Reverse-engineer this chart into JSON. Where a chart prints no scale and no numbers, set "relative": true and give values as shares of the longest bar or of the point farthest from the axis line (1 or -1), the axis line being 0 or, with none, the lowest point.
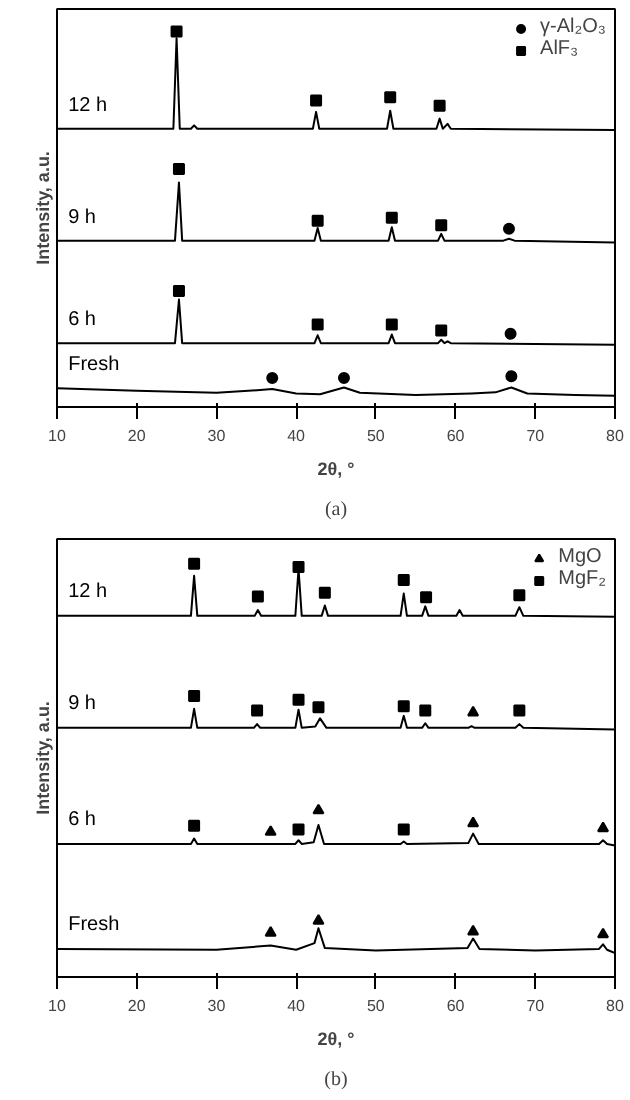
{
  "chart_data": [
    {
      "type": "line",
      "relative": true,
      "xlabel": "2θ, °",
      "ylabel": "Intensity, a.u.",
      "xlim": [
        10,
        80
      ],
      "xticks": [
        10,
        20,
        30,
        40,
        50,
        60,
        70,
        80
      ],
      "tick_labels": "x",
      "grid": false,
      "legend": "top right",
      "annotations": [
        "(a)"
      ],
      "series": [
        {
          "name": "Fresh",
          "color": "#000000",
          "x": [
            10,
            20,
            30,
            34,
            37,
            40,
            43,
            46,
            48,
            55,
            62,
            65,
            67,
            69,
            75,
            80
          ],
          "values": [
            0.05,
            0.043,
            0.038,
            0.043,
            0.048,
            0.036,
            0.034,
            0.052,
            0.038,
            0.032,
            0.036,
            0.039,
            0.052,
            0.036,
            0.032,
            0.03
          ]
        },
        {
          "name": "6 h",
          "color": "#000000",
          "x": [
            10,
            24.8,
            25.3,
            25.7,
            42.3,
            42.7,
            43.1,
            51.6,
            52,
            52.4,
            57.8,
            58.2,
            58.6,
            59,
            59.4,
            80
          ],
          "values": [
            0.17,
            0.17,
            0.286,
            0.17,
            0.17,
            0.191,
            0.17,
            0.17,
            0.193,
            0.17,
            0.17,
            0.179,
            0.17,
            0.175,
            0.17,
            0.166
          ]
        },
        {
          "name": "9 h",
          "color": "#000000",
          "x": [
            10,
            24.8,
            25.3,
            25.7,
            42.3,
            42.7,
            43.1,
            51.6,
            52,
            52.4,
            57.8,
            58.2,
            58.6,
            66,
            66.7,
            67.4,
            80
          ],
          "values": [
            0.443,
            0.443,
            0.598,
            0.443,
            0.443,
            0.477,
            0.443,
            0.443,
            0.479,
            0.443,
            0.443,
            0.461,
            0.443,
            0.443,
            0.448,
            0.443,
            0.438
          ]
        },
        {
          "name": "12 h",
          "color": "#000000",
          "x": [
            10,
            24.6,
            25,
            25.4,
            26.8,
            27.2,
            27.6,
            42.1,
            42.5,
            42.9,
            51.4,
            51.8,
            52.2,
            57.6,
            58,
            58.4,
            59,
            59.4,
            80
          ],
          "values": [
            0.741,
            0.741,
            0.982,
            0.741,
            0.741,
            0.75,
            0.741,
            0.741,
            0.786,
            0.741,
            0.741,
            0.789,
            0.741,
            0.741,
            0.768,
            0.741,
            0.754,
            0.741,
            0.738
          ]
        },
        {
          "name": "γ-Al₂O₃",
          "type": "scatter",
          "marker": "circle",
          "color": "#000000",
          "x": [
            37,
            46,
            67,
            66.9,
            66.7
          ],
          "values": [
            0.077,
            0.077,
            0.082,
            0.195,
            0.475
          ]
        },
        {
          "name": "AlF₃",
          "type": "scatter",
          "marker": "square",
          "color": "#000000",
          "x": [
            25.3,
            42.7,
            52,
            58.2,
            25.3,
            42.7,
            52,
            58.2,
            25,
            42.5,
            51.8,
            58
          ],
          "values": [
            0.309,
            0.22,
            0.22,
            0.204,
            0.634,
            0.496,
            0.504,
            0.484,
            1.0,
            0.816,
            0.825,
            0.802
          ]
        }
      ]
    },
    {
      "type": "line",
      "relative": true,
      "xlabel": "2θ, °",
      "ylabel": "Intensity, a.u.",
      "xlim": [
        10,
        80
      ],
      "xticks": [
        10,
        20,
        30,
        40,
        50,
        60,
        70,
        80
      ],
      "tick_labels": "x",
      "grid": false,
      "legend": "top right",
      "annotations": [
        "(b)"
      ],
      "series": [
        {
          "name": "Fresh",
          "color": "#000000",
          "x": [
            10,
            30,
            36.8,
            40,
            42.3,
            42.8,
            43.6,
            50,
            61.5,
            62.2,
            63,
            70,
            78,
            78.5,
            79,
            80
          ],
          "values": [
            0.068,
            0.066,
            0.076,
            0.066,
            0.082,
            0.118,
            0.07,
            0.064,
            0.07,
            0.093,
            0.068,
            0.064,
            0.068,
            0.079,
            0.066,
            0.058
          ]
        },
        {
          "name": "6 h",
          "color": "#000000",
          "x": [
            10,
            26.8,
            27.2,
            27.6,
            39.9,
            40.3,
            40.7,
            42.2,
            42.8,
            43.5,
            53.1,
            53.5,
            53.9,
            61.6,
            62.2,
            62.9,
            78,
            78.5,
            79,
            80
          ],
          "values": [
            0.322,
            0.322,
            0.335,
            0.322,
            0.322,
            0.331,
            0.322,
            0.326,
            0.368,
            0.322,
            0.322,
            0.328,
            0.322,
            0.324,
            0.347,
            0.322,
            0.322,
            0.331,
            0.322,
            0.318
          ]
        },
        {
          "name": "9 h",
          "color": "#000000",
          "x": [
            10,
            26.8,
            27.2,
            27.6,
            34.7,
            35.1,
            35.5,
            39.9,
            40.3,
            40.7,
            42.4,
            43,
            43.8,
            53.1,
            53.5,
            53.9,
            55.8,
            56.2,
            56.6,
            61.6,
            62,
            62.4,
            67.5,
            68,
            68.5,
            80
          ],
          "values": [
            0.603,
            0.603,
            0.649,
            0.603,
            0.603,
            0.612,
            0.603,
            0.603,
            0.647,
            0.603,
            0.606,
            0.626,
            0.603,
            0.603,
            0.632,
            0.603,
            0.603,
            0.614,
            0.603,
            0.603,
            0.607,
            0.603,
            0.603,
            0.612,
            0.603,
            0.599
          ]
        },
        {
          "name": "12 h",
          "color": "#000000",
          "x": [
            10,
            26.8,
            27.2,
            27.6,
            34.8,
            35.2,
            35.6,
            39.9,
            40.3,
            40.7,
            43.2,
            43.6,
            44,
            53.1,
            53.5,
            53.9,
            55.8,
            56.2,
            56.6,
            60.1,
            60.5,
            60.9,
            67.5,
            68,
            68.5,
            80
          ],
          "values": [
            0.874,
            0.874,
            0.971,
            0.874,
            0.874,
            0.888,
            0.874,
            0.874,
            0.988,
            0.874,
            0.874,
            0.899,
            0.874,
            0.874,
            0.928,
            0.874,
            0.874,
            0.897,
            0.874,
            0.874,
            0.888,
            0.874,
            0.874,
            0.895,
            0.874,
            0.872
          ]
        },
        {
          "name": "MgO",
          "type": "scatter",
          "marker": "triangle",
          "color": "#000000",
          "x": [
            36.8,
            42.8,
            62.2,
            78.5,
            36.8,
            42.8,
            62.2,
            78.5,
            62.2
          ],
          "values": [
            0.107,
            0.136,
            0.11,
            0.103,
            0.351,
            0.403,
            0.372,
            0.36,
            0.64
          ]
        },
        {
          "name": "MgF₂",
          "type": "scatter",
          "marker": "square",
          "color": "#000000",
          "x": [
            27.2,
            40.3,
            53.5,
            27.2,
            35.1,
            40.3,
            42.8,
            53.5,
            56.2,
            68,
            27.2,
            35.2,
            40.3,
            43.6,
            53.5,
            56.3,
            68
          ],
          "values": [
            0.366,
            0.357,
            0.357,
            0.68,
            0.645,
            0.671,
            0.653,
            0.655,
            0.645,
            0.645,
            1.0,
            0.921,
            0.992,
            0.93,
            0.961,
            0.919,
            0.924
          ]
        }
      ]
    }
  ]
}
